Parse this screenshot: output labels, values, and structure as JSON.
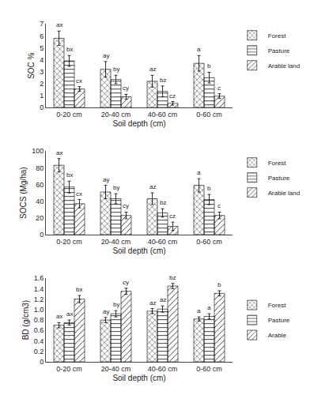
{
  "chart_data": [
    {
      "type": "bar",
      "xlabel": "Soil depth (cm)",
      "ylabel": "SOC %",
      "categories": [
        "0-20 cm",
        "20-40 cm",
        "40-60 cm",
        "0-60 cm"
      ],
      "series": [
        {
          "name": "Forest",
          "color": "#d8d8d8",
          "values": [
            5.8,
            3.2,
            2.2,
            3.7
          ],
          "errors": [
            0.6,
            0.65,
            0.5,
            0.65
          ],
          "labels": [
            "ax",
            "ay",
            "az",
            "a"
          ]
        },
        {
          "name": "Pasture",
          "color": "#a8a8a8",
          "values": [
            3.9,
            2.35,
            1.35,
            2.5
          ],
          "errors": [
            0.45,
            0.35,
            0.45,
            0.45
          ],
          "labels": [
            "bx",
            "by",
            "bz",
            "b"
          ]
        },
        {
          "name": "Arable land",
          "color": "#686868",
          "values": [
            1.55,
            0.9,
            0.35,
            0.95
          ],
          "errors": [
            0.2,
            0.2,
            0.15,
            0.2
          ],
          "labels": [
            "cx",
            "cy",
            "cz",
            "c"
          ]
        }
      ],
      "ylim": [
        0,
        7
      ],
      "yticks": [
        0,
        1,
        2,
        3,
        4,
        5,
        6,
        7
      ],
      "grid": false,
      "legend": "upper right"
    },
    {
      "type": "bar",
      "xlabel": "Soil depth (cm)",
      "ylabel": "SOCS (Mg/ha)",
      "categories": [
        "0-20 cm",
        "20-40 cm",
        "40-60 cm",
        "0-60 cm"
      ],
      "series": [
        {
          "name": "Forest",
          "color": "#d8d8d8",
          "values": [
            83,
            51,
            43,
            59
          ],
          "errors": [
            8,
            8,
            7,
            8
          ],
          "labels": [
            "ax",
            "ay",
            "az",
            "a"
          ]
        },
        {
          "name": "Pasture",
          "color": "#a8a8a8",
          "values": [
            57,
            43,
            26,
            42
          ],
          "errors": [
            7,
            6,
            5,
            6
          ],
          "labels": [
            "bx",
            "by",
            "bz",
            "b"
          ]
        },
        {
          "name": "Arable land",
          "color": "#686868",
          "values": [
            37,
            23,
            10,
            23
          ],
          "errors": [
            5,
            4,
            5,
            4
          ],
          "labels": [
            "cx",
            "cy",
            "cz",
            "c"
          ]
        }
      ],
      "ylim": [
        0,
        100
      ],
      "yticks": [
        0,
        20,
        40,
        60,
        80,
        100
      ],
      "grid": false,
      "legend": "upper right"
    },
    {
      "type": "bar",
      "xlabel": "Soil depth (cm)",
      "ylabel": "BD (g/cm3)",
      "categories": [
        "0-20 cm",
        "20-40 cm",
        "40-60 cm",
        "0-60 cm"
      ],
      "series": [
        {
          "name": "Forest",
          "color": "#d8d8d8",
          "values": [
            0.7,
            0.8,
            0.97,
            0.82
          ],
          "errors": [
            0.05,
            0.05,
            0.05,
            0.04
          ],
          "labels": [
            "ax",
            "ay",
            "az",
            "a"
          ]
        },
        {
          "name": "Pasture",
          "color": "#a8a8a8",
          "values": [
            0.75,
            0.92,
            1.01,
            0.87
          ],
          "errors": [
            0.05,
            0.06,
            0.06,
            0.05
          ],
          "labels": [
            "ax",
            "by",
            "az",
            "a"
          ]
        },
        {
          "name": "Arable",
          "color": "#686868",
          "values": [
            1.2,
            1.35,
            1.45,
            1.31
          ],
          "errors": [
            0.07,
            0.06,
            0.05,
            0.05
          ],
          "labels": [
            "bx",
            "cy",
            "bz",
            "b"
          ]
        }
      ],
      "ylim": [
        0,
        1.6
      ],
      "yticks": [
        0,
        0.2,
        0.4,
        0.6,
        0.8,
        {
          "value": 1.0,
          "label": "1.0"
        },
        1.2,
        1.4,
        1.6
      ],
      "grid": false,
      "legend": "center right"
    }
  ]
}
